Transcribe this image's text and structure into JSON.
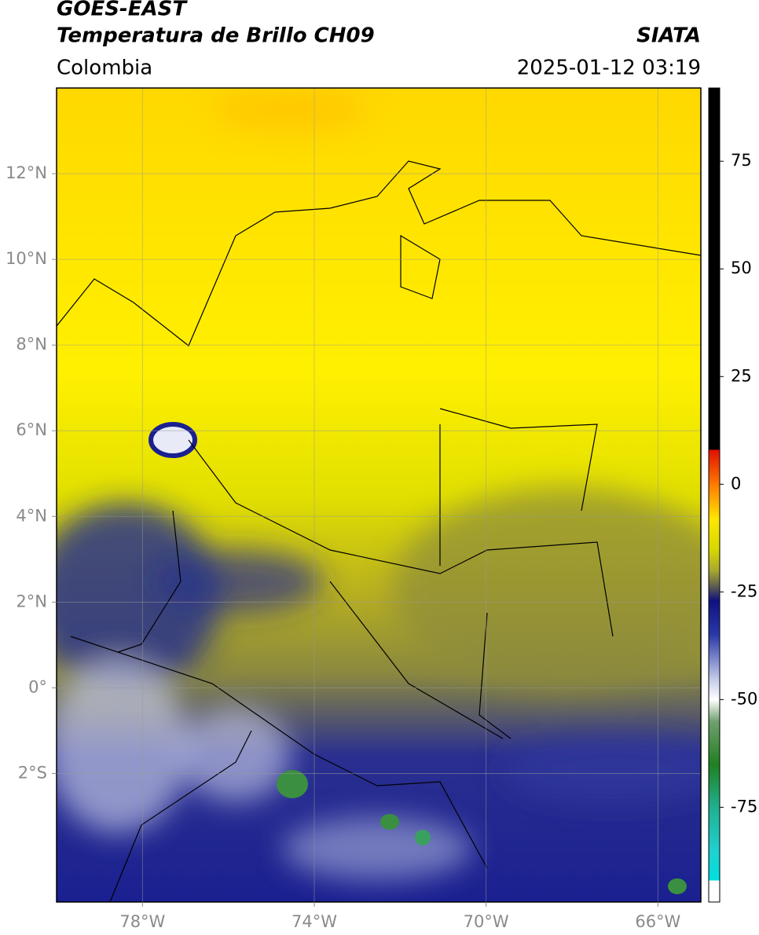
{
  "header": {
    "title_line1": "GOES-EAST",
    "title_line2": "Temperatura de Brillo CH09",
    "source": "SIATA",
    "region": "Colombia",
    "datetime": "2025-01-12 03:19"
  },
  "map": {
    "xlim": [
      -80,
      -65
    ],
    "ylim": [
      -5,
      14
    ],
    "xticks": [
      {
        "value": -78,
        "label": "78°W"
      },
      {
        "value": -74,
        "label": "74°W"
      },
      {
        "value": -70,
        "label": "70°W"
      },
      {
        "value": -66,
        "label": "66°W"
      }
    ],
    "yticks": [
      {
        "value": 12,
        "label": "12°N"
      },
      {
        "value": 10,
        "label": "10°N"
      },
      {
        "value": 8,
        "label": "8°N"
      },
      {
        "value": 6,
        "label": "6°N"
      },
      {
        "value": 4,
        "label": "4°N"
      },
      {
        "value": 2,
        "label": "2°N"
      },
      {
        "value": 0,
        "label": "0°"
      },
      {
        "value": -2,
        "label": "2°S"
      }
    ]
  },
  "colorbar": {
    "lim": [
      -97,
      92
    ],
    "ticks": [
      75,
      50,
      25,
      0,
      -25,
      -50,
      -75
    ],
    "stops": [
      {
        "value": 92,
        "color": "#000000"
      },
      {
        "value": 8,
        "color": "#000000"
      },
      {
        "value": 8,
        "color": "#e01000"
      },
      {
        "value": 0,
        "color": "#ff7a00"
      },
      {
        "value": -8,
        "color": "#ffe600"
      },
      {
        "value": -15,
        "color": "#d8d800"
      },
      {
        "value": -20,
        "color": "#a8a830"
      },
      {
        "value": -24,
        "color": "#555555"
      },
      {
        "value": -27,
        "color": "#101080"
      },
      {
        "value": -35,
        "color": "#2a3aa8"
      },
      {
        "value": -45,
        "color": "#c0c8e8"
      },
      {
        "value": -50,
        "color": "#ffffff"
      },
      {
        "value": -55,
        "color": "#70a070"
      },
      {
        "value": -65,
        "color": "#208020"
      },
      {
        "value": -75,
        "color": "#20b090"
      },
      {
        "value": -85,
        "color": "#20d0d0"
      },
      {
        "value": -92,
        "color": "#00e0e0"
      },
      {
        "value": -92,
        "color": "#ffffff"
      },
      {
        "value": -97,
        "color": "#ffffff"
      }
    ]
  }
}
